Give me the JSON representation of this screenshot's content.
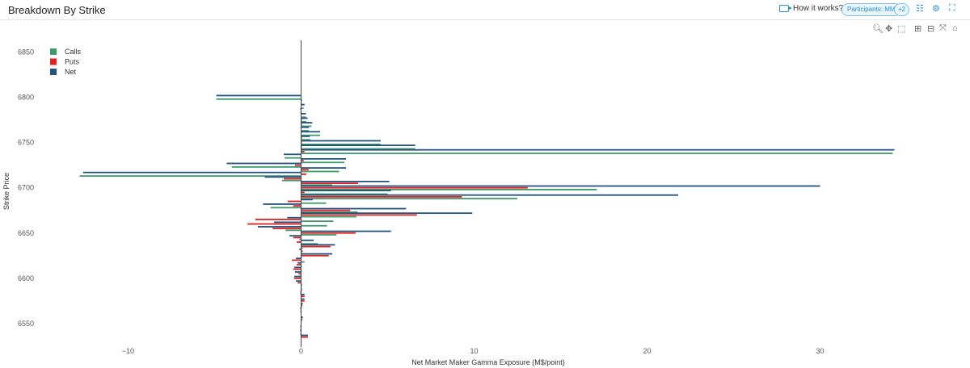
{
  "header": {
    "title": "Breakdown By Strike",
    "how_it_works": "How it works?",
    "participants": "Participants: MM",
    "more": "+2"
  },
  "icons": {
    "video": "video-icon",
    "filter": "sliders-icon",
    "settings": "gear-icon",
    "fullscreen": "expand-icon",
    "modebar": [
      "zoom-icon",
      "pan-icon",
      "box-select-icon",
      "zoom-in-icon",
      "zoom-out-icon",
      "autoscale-icon",
      "home-icon"
    ]
  },
  "chart_data": {
    "type": "bar",
    "orientation": "horizontal",
    "xlabel": "Net Market Maker Gamma Exposure (M$/point)",
    "ylabel": "Strike Price",
    "xlim": [
      -15.3,
      38.2
    ],
    "ylim": [
      6524,
      6863
    ],
    "xticks": [
      -10,
      0,
      10,
      20,
      30
    ],
    "yticks": [
      6550,
      6600,
      6650,
      6700,
      6750,
      6800,
      6850
    ],
    "legend_position": "top-left",
    "colors": {
      "Calls": "#3d9a6b",
      "Puts": "#e3201d",
      "Net": "#22527f"
    },
    "strikes": [
      6800,
      6795,
      6790,
      6785,
      6780,
      6775,
      6770,
      6765,
      6760,
      6755,
      6750,
      6745,
      6740,
      6735,
      6730,
      6725,
      6720,
      6715,
      6710,
      6705,
      6700,
      6695,
      6690,
      6685,
      6680,
      6675,
      6670,
      6665,
      6660,
      6655,
      6650,
      6645,
      6640,
      6635,
      6630,
      6625,
      6620,
      6615,
      6610,
      6605,
      6600,
      6595,
      6590,
      6585,
      6580,
      6575,
      6570,
      6565,
      6560,
      6555,
      6550,
      6545,
      6540,
      6535
    ],
    "series": [
      {
        "name": "Calls",
        "values": [
          -4.9,
          0.05,
          0.15,
          -0.05,
          0.28,
          0.3,
          0.6,
          0.45,
          1.1,
          0.55,
          4.6,
          6.6,
          34.2,
          -0.95,
          2.5,
          -4.0,
          2.2,
          -12.8,
          -1.1,
          1.8,
          17.1,
          5.0,
          12.5,
          1.45,
          -1.76,
          3.27,
          3.2,
          1.87,
          1.5,
          -0.9,
          2.05,
          -0.1,
          0.97,
          0.1,
          0.05,
          0.05,
          0.2,
          0.05,
          0.05,
          -0.05,
          0.02,
          0.05,
          0.05,
          -0.05,
          0.02,
          0.02,
          0.05,
          -0.05,
          0.02,
          0.05,
          0.02,
          -0.05,
          -0.05,
          0.02
        ]
      },
      {
        "name": "Puts",
        "values": [
          0,
          0,
          0.02,
          0,
          0,
          0.05,
          0.05,
          0,
          0,
          0.05,
          0.05,
          0.05,
          0.2,
          0,
          0.15,
          -0.35,
          0.44,
          0.3,
          -1.0,
          3.3,
          13.1,
          0.2,
          9.3,
          -0.78,
          -0.45,
          2.84,
          6.7,
          -2.65,
          -3.1,
          -1.64,
          3.15,
          -0.45,
          -0.25,
          1.7,
          0.1,
          1.6,
          -0.53,
          -0.25,
          -0.45,
          -0.15,
          -0.4,
          -0.2,
          0.03,
          -0.05,
          0.2,
          0.2,
          0.08,
          -0.03,
          0.02,
          0.08,
          0.02,
          -0.03,
          -0.03,
          0.4
        ]
      },
      {
        "name": "Net",
        "values": [
          -4.9,
          0.05,
          0.2,
          -0.05,
          0.28,
          0.38,
          0.65,
          0.45,
          1.1,
          0.5,
          4.6,
          6.6,
          34.3,
          -1.0,
          2.6,
          -4.3,
          2.6,
          -12.6,
          -2.1,
          5.1,
          30.0,
          5.2,
          21.8,
          0.67,
          -2.2,
          6.07,
          9.9,
          -0.8,
          -1.56,
          -2.5,
          5.2,
          -0.67,
          0.73,
          1.96,
          -0.1,
          1.8,
          -0.3,
          -0.2,
          -0.4,
          -0.35,
          -0.4,
          -0.3,
          0.05,
          0.05,
          0.2,
          0.2,
          0.1,
          -0.05,
          0.03,
          0.1,
          0.03,
          -0.05,
          -0.05,
          0.4
        ]
      }
    ]
  }
}
